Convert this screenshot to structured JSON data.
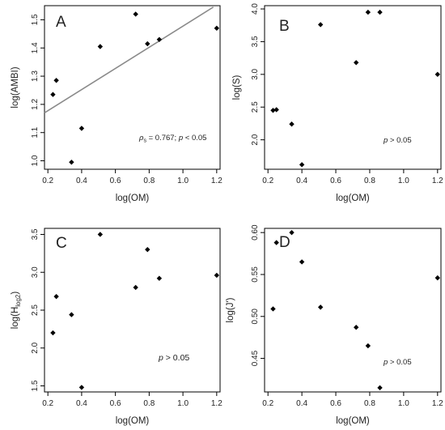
{
  "chart_data": [
    {
      "id": "A",
      "type": "scatter",
      "panel_label": "A",
      "xlabel": "log(OM)",
      "ylabel": "log(AMBI)",
      "xlim": [
        0.18,
        1.22
      ],
      "ylim": [
        0.97,
        1.55
      ],
      "xticks": [
        "0.2",
        "0.4",
        "0.6",
        "0.8",
        "1.0",
        "1.2"
      ],
      "yticks": [
        "1.0",
        "1.1",
        "1.2",
        "1.3",
        "1.4",
        "1.5"
      ],
      "points": [
        {
          "x": 0.23,
          "y": 1.235
        },
        {
          "x": 0.25,
          "y": 1.285
        },
        {
          "x": 0.34,
          "y": 0.995
        },
        {
          "x": 0.4,
          "y": 1.115
        },
        {
          "x": 0.51,
          "y": 1.405
        },
        {
          "x": 0.72,
          "y": 1.52
        },
        {
          "x": 0.79,
          "y": 1.415
        },
        {
          "x": 0.86,
          "y": 1.43
        },
        {
          "x": 1.2,
          "y": 1.47
        }
      ],
      "fit_line": {
        "x": [
          0.18,
          1.18
        ],
        "y": [
          1.17,
          1.545
        ]
      },
      "annotation": {
        "rho_symbol": "ρ",
        "rho_sub": "s",
        "text": " = 0.767; ",
        "p": "p",
        "tail": " < 0.05"
      },
      "grid": false
    },
    {
      "id": "B",
      "type": "scatter",
      "panel_label": "B",
      "xlabel": "log(OM)",
      "ylabel": "log(S)",
      "xlim": [
        0.18,
        1.22
      ],
      "ylim": [
        1.55,
        4.05
      ],
      "xticks": [
        "0.2",
        "0.4",
        "0.6",
        "0.8",
        "1.0",
        "1.2"
      ],
      "yticks": [
        "2.0",
        "2.5",
        "3.0",
        "3.5",
        "4.0"
      ],
      "points": [
        {
          "x": 0.23,
          "y": 2.45
        },
        {
          "x": 0.25,
          "y": 2.46
        },
        {
          "x": 0.34,
          "y": 2.24
        },
        {
          "x": 0.4,
          "y": 1.62
        },
        {
          "x": 0.51,
          "y": 3.76
        },
        {
          "x": 0.72,
          "y": 3.18
        },
        {
          "x": 0.79,
          "y": 3.95
        },
        {
          "x": 0.86,
          "y": 3.95
        },
        {
          "x": 1.2,
          "y": 3.0
        }
      ],
      "annotation": {
        "p": "p",
        "tail": " > 0.05"
      },
      "grid": false
    },
    {
      "id": "C",
      "type": "scatter",
      "panel_label": "C",
      "xlabel": "log(OM)",
      "ylabel_main": "log(H",
      "ylabel_sub": "log2",
      "ylabel_end": ")",
      "xlim": [
        0.18,
        1.22
      ],
      "ylim": [
        1.42,
        3.58
      ],
      "xticks": [
        "0.2",
        "0.4",
        "0.6",
        "0.8",
        "1.0",
        "1.2"
      ],
      "yticks": [
        "1.5",
        "2.0",
        "2.5",
        "3.0",
        "3.5"
      ],
      "points": [
        {
          "x": 0.23,
          "y": 2.2
        },
        {
          "x": 0.25,
          "y": 2.68
        },
        {
          "x": 0.34,
          "y": 2.44
        },
        {
          "x": 0.4,
          "y": 1.48
        },
        {
          "x": 0.51,
          "y": 3.5
        },
        {
          "x": 0.72,
          "y": 2.8
        },
        {
          "x": 0.79,
          "y": 3.3
        },
        {
          "x": 0.86,
          "y": 2.92
        },
        {
          "x": 1.2,
          "y": 2.96
        }
      ],
      "annotation": {
        "p": "p",
        "tail": " > 0.05"
      },
      "grid": false
    },
    {
      "id": "D",
      "type": "scatter",
      "panel_label": "D",
      "xlabel": "log(OM)",
      "ylabel": "log(J')",
      "xlim": [
        0.18,
        1.22
      ],
      "ylim": [
        0.41,
        0.605
      ],
      "xticks": [
        "0.2",
        "0.4",
        "0.6",
        "0.8",
        "1.0",
        "1.2"
      ],
      "yticks": [
        "0.45",
        "0.50",
        "0.55",
        "0.60"
      ],
      "points": [
        {
          "x": 0.23,
          "y": 0.509
        },
        {
          "x": 0.25,
          "y": 0.588
        },
        {
          "x": 0.34,
          "y": 0.6
        },
        {
          "x": 0.4,
          "y": 0.565
        },
        {
          "x": 0.51,
          "y": 0.511
        },
        {
          "x": 0.72,
          "y": 0.487
        },
        {
          "x": 0.79,
          "y": 0.465
        },
        {
          "x": 0.86,
          "y": 0.415
        },
        {
          "x": 1.2,
          "y": 0.546
        }
      ],
      "annotation": {
        "p": "p",
        "tail": " > 0.05"
      },
      "grid": false
    }
  ]
}
